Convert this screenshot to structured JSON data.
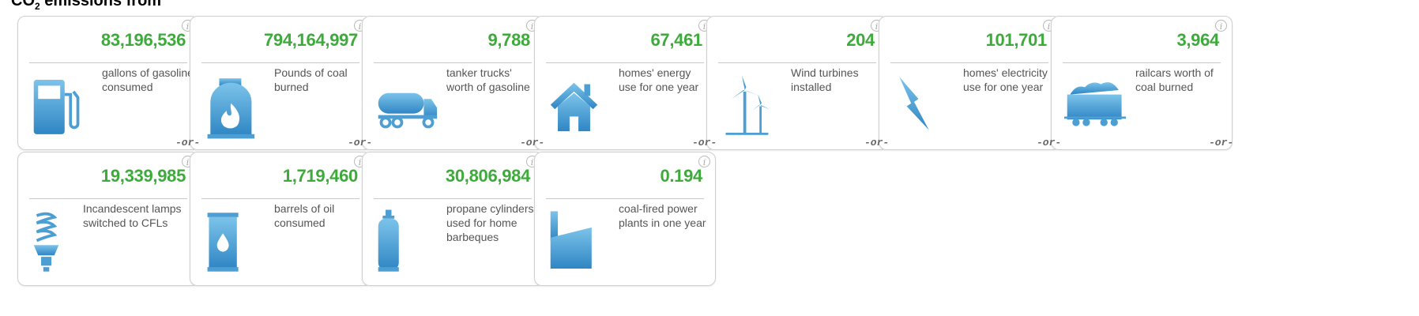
{
  "heading": {
    "prefix": "CO",
    "sub": "2",
    "suffix": " emissions from"
  },
  "separator": "-or-",
  "colors": {
    "value": "#3eaa3b",
    "icon": "#4d9fd3"
  },
  "cards": [
    {
      "value": "83,196,536",
      "label": "gallons of gasoline consumed",
      "icon": "gas-pump-icon"
    },
    {
      "value": "794,164,997",
      "label": "Pounds of coal burned",
      "icon": "coal-fire-icon"
    },
    {
      "value": "9,788",
      "label": "tanker trucks' worth of gasoline",
      "icon": "tanker-truck-icon"
    },
    {
      "value": "67,461",
      "label": "homes' energy use for one year",
      "icon": "house-icon"
    },
    {
      "value": "204",
      "label": "Wind turbines installed",
      "icon": "wind-turbine-icon"
    },
    {
      "value": "101,701",
      "label": "homes' electricity use for one year",
      "icon": "lightning-bolt-icon"
    },
    {
      "value": "3,964",
      "label": "railcars worth of coal burned",
      "icon": "coal-railcar-icon"
    },
    {
      "value": "19,339,985",
      "label": "Incandescent lamps switched to CFLs",
      "icon": "cfl-bulb-icon"
    },
    {
      "value": "1,719,460",
      "label": "barrels of oil consumed",
      "icon": "oil-barrel-icon"
    },
    {
      "value": "30,806,984",
      "label": "propane cylinders used for home barbeques",
      "icon": "propane-cylinder-icon"
    },
    {
      "value": "0.194",
      "label": "coal-fired power plants in one year",
      "icon": "power-plant-icon"
    }
  ]
}
